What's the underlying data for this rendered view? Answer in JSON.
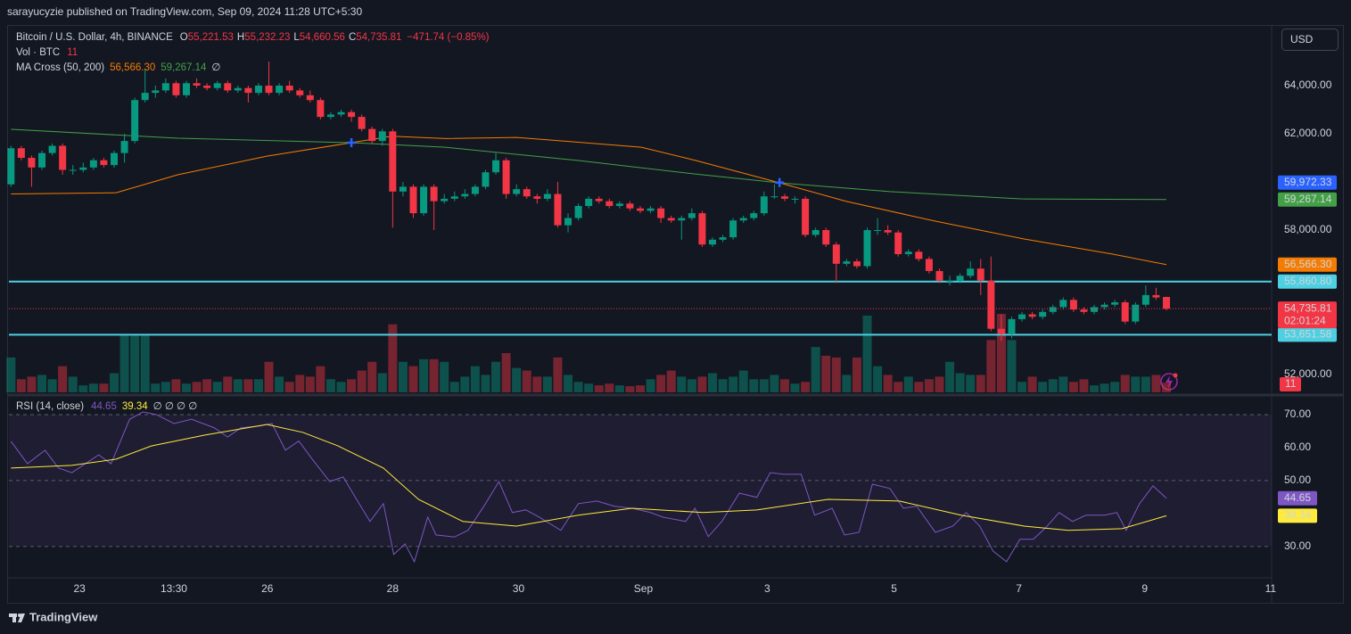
{
  "chart_data": {
    "type": "candlestick",
    "header": "sarayucyzie published on TradingView.com, Sep 09, 2024 11:28 UTC+5:30",
    "title": "Bitcoin / U.S. Dollar, 4h, BINANCE",
    "legend": [
      {
        "key": "O",
        "value": "55,221.53"
      },
      {
        "key": "H",
        "value": "55,232.23"
      },
      {
        "key": "L",
        "value": "54,660.56"
      },
      {
        "key": "C",
        "value": "54,735.81"
      }
    ],
    "change": "−471.74 (−0.85%)",
    "countdown": "02:01:24",
    "currency": "USD",
    "footer": "TradingView",
    "up_color": "#089981",
    "down_color": "#f23645",
    "xlim": [
      -0.2,
      122.2
    ],
    "xticks": [
      {
        "value": 6.64,
        "label": "23"
      },
      {
        "value": 15.79,
        "label": "13:30"
      },
      {
        "value": 24.85,
        "label": "26"
      },
      {
        "value": 37.0,
        "label": "28"
      },
      {
        "value": 49.2,
        "label": "30"
      },
      {
        "value": 61.3,
        "label": "Sep"
      },
      {
        "value": 73.3,
        "label": "3"
      },
      {
        "value": 85.6,
        "label": "5"
      },
      {
        "value": 97.7,
        "label": "7"
      },
      {
        "value": 109.9,
        "label": "9"
      },
      {
        "value": 122.1,
        "label": "11"
      }
    ],
    "ylim": [
      51260,
      66445
    ],
    "yticks": [
      {
        "value": 64000,
        "label": "64,000.00"
      },
      {
        "value": 62000,
        "label": "62,000.00"
      },
      {
        "value": 58000,
        "label": "58,000.00"
      },
      {
        "value": 52000,
        "label": "52,000.00"
      }
    ],
    "ohlc": [
      [
        59900,
        61500,
        59800,
        61400
      ],
      [
        61400,
        61500,
        60900,
        61000
      ],
      [
        61000,
        61100,
        59800,
        60600
      ],
      [
        60600,
        61300,
        60500,
        61200
      ],
      [
        61200,
        61600,
        61100,
        61500
      ],
      [
        61500,
        61600,
        60300,
        60500
      ],
      [
        60500,
        60700,
        60300,
        60500
      ],
      [
        60500,
        60800,
        60400,
        60600
      ],
      [
        60600,
        61000,
        60500,
        60900
      ],
      [
        60900,
        61000,
        60600,
        60700
      ],
      [
        60700,
        61300,
        60600,
        61200
      ],
      [
        61200,
        62000,
        60800,
        61700
      ],
      [
        61700,
        63500,
        61600,
        63400
      ],
      [
        63400,
        64700,
        63300,
        63700
      ],
      [
        63700,
        64000,
        63500,
        63800
      ],
      [
        63800,
        64300,
        63700,
        64100
      ],
      [
        64100,
        64200,
        63500,
        63600
      ],
      [
        63600,
        64200,
        63500,
        64100
      ],
      [
        64100,
        64300,
        63900,
        64000
      ],
      [
        64000,
        64100,
        63800,
        63900
      ],
      [
        63900,
        64200,
        63800,
        64100
      ],
      [
        64100,
        64200,
        63700,
        63800
      ],
      [
        63800,
        64000,
        63700,
        63900
      ],
      [
        63900,
        64000,
        63300,
        63700
      ],
      [
        63700,
        64100,
        63600,
        64000
      ],
      [
        64000,
        65000,
        63600,
        63700
      ],
      [
        63700,
        64100,
        63600,
        64000
      ],
      [
        64000,
        64200,
        63700,
        63800
      ],
      [
        63800,
        63900,
        63500,
        63600
      ],
      [
        63600,
        63800,
        63300,
        63400
      ],
      [
        63400,
        63500,
        62600,
        62700
      ],
      [
        62700,
        62900,
        62600,
        62800
      ],
      [
        62800,
        63000,
        62700,
        62900
      ],
      [
        62900,
        63000,
        62500,
        62700
      ],
      [
        62700,
        62800,
        62100,
        62200
      ],
      [
        62200,
        62300,
        61600,
        61700
      ],
      [
        61700,
        62200,
        61500,
        62100
      ],
      [
        62100,
        62200,
        58100,
        59600
      ],
      [
        59600,
        60000,
        59400,
        59800
      ],
      [
        59800,
        59900,
        58500,
        58700
      ],
      [
        58700,
        59900,
        58600,
        59800
      ],
      [
        59800,
        59900,
        58000,
        59200
      ],
      [
        59200,
        59500,
        59100,
        59300
      ],
      [
        59300,
        59600,
        59200,
        59400
      ],
      [
        59400,
        59700,
        59300,
        59500
      ],
      [
        59500,
        59900,
        59400,
        59800
      ],
      [
        59800,
        60500,
        59700,
        60400
      ],
      [
        60400,
        61200,
        60300,
        60900
      ],
      [
        60900,
        61000,
        59300,
        59500
      ],
      [
        59500,
        59900,
        59400,
        59700
      ],
      [
        59700,
        59800,
        59300,
        59400
      ],
      [
        59400,
        59500,
        59100,
        59300
      ],
      [
        59300,
        59700,
        59200,
        59500
      ],
      [
        59500,
        60000,
        58100,
        58200
      ],
      [
        58200,
        58700,
        57900,
        58500
      ],
      [
        58500,
        59100,
        58400,
        59000
      ],
      [
        59000,
        59400,
        58900,
        59300
      ],
      [
        59300,
        59400,
        59100,
        59200
      ],
      [
        59200,
        59300,
        58900,
        59000
      ],
      [
        59000,
        59200,
        58900,
        59100
      ],
      [
        59100,
        59200,
        58800,
        58900
      ],
      [
        58900,
        59000,
        58700,
        58800
      ],
      [
        58800,
        59000,
        58700,
        58900
      ],
      [
        58900,
        59000,
        58300,
        58500
      ],
      [
        58500,
        58600,
        58300,
        58400
      ],
      [
        58400,
        58600,
        57600,
        58500
      ],
      [
        58500,
        58900,
        58400,
        58700
      ],
      [
        58700,
        58800,
        57300,
        57400
      ],
      [
        57400,
        57700,
        57300,
        57600
      ],
      [
        57600,
        57800,
        57500,
        57700
      ],
      [
        57700,
        58500,
        57600,
        58400
      ],
      [
        58400,
        58600,
        58300,
        58500
      ],
      [
        58500,
        58800,
        58400,
        58700
      ],
      [
        58700,
        59600,
        58600,
        59400
      ],
      [
        59400,
        59900,
        59300,
        59400
      ],
      [
        59400,
        59500,
        59200,
        59300
      ],
      [
        59300,
        59400,
        59100,
        59300
      ],
      [
        59300,
        59400,
        57700,
        57800
      ],
      [
        57800,
        58100,
        57700,
        58000
      ],
      [
        58000,
        58100,
        57300,
        57400
      ],
      [
        57400,
        57500,
        55800,
        56600
      ],
      [
        56600,
        56800,
        56500,
        56700
      ],
      [
        56700,
        56800,
        56400,
        56500
      ],
      [
        56500,
        58100,
        56400,
        58000
      ],
      [
        58000,
        58500,
        57800,
        58000
      ],
      [
        58000,
        58200,
        57800,
        57900
      ],
      [
        57900,
        58000,
        56900,
        57000
      ],
      [
        57000,
        57200,
        56900,
        57100
      ],
      [
        57100,
        57200,
        56700,
        56800
      ],
      [
        56800,
        56900,
        56200,
        56300
      ],
      [
        56300,
        56400,
        55800,
        55900
      ],
      [
        55900,
        56100,
        55700,
        55900
      ],
      [
        55900,
        56200,
        55800,
        56100
      ],
      [
        56100,
        56700,
        56000,
        56400
      ],
      [
        56400,
        56800,
        55300,
        55900
      ],
      [
        55900,
        56900,
        53800,
        53900
      ],
      [
        53900,
        54500,
        53400,
        53700
      ],
      [
        53700,
        54400,
        53500,
        54300
      ],
      [
        54300,
        54600,
        54200,
        54500
      ],
      [
        54500,
        54600,
        54300,
        54400
      ],
      [
        54400,
        54700,
        54300,
        54600
      ],
      [
        54600,
        54900,
        54500,
        54800
      ],
      [
        54800,
        55200,
        54700,
        55100
      ],
      [
        55100,
        55200,
        54600,
        54700
      ],
      [
        54700,
        54800,
        54500,
        54600
      ],
      [
        54600,
        54900,
        54500,
        54800
      ],
      [
        54800,
        55000,
        54700,
        54900
      ],
      [
        54900,
        55100,
        54800,
        55000
      ],
      [
        55000,
        55100,
        54100,
        54200
      ],
      [
        54200,
        55000,
        54100,
        54900
      ],
      [
        54900,
        55700,
        54800,
        55300
      ],
      [
        55300,
        55600,
        55100,
        55200
      ],
      [
        55221.53,
        55232.23,
        54660.56,
        54735.81
      ]
    ],
    "volume": {
      "name": "Vol · BTC",
      "values": [
        40,
        15,
        18,
        20,
        15,
        30,
        18,
        8,
        10,
        10,
        22,
        65,
        65,
        65,
        10,
        12,
        15,
        10,
        12,
        15,
        12,
        18,
        15,
        15,
        15,
        35,
        18,
        12,
        20,
        18,
        30,
        15,
        12,
        15,
        25,
        35,
        22,
        78,
        35,
        30,
        38,
        38,
        35,
        12,
        18,
        30,
        20,
        35,
        45,
        28,
        25,
        18,
        18,
        40,
        20,
        12,
        10,
        8,
        10,
        8,
        7,
        8,
        15,
        20,
        25,
        18,
        15,
        18,
        22,
        15,
        18,
        25,
        15,
        15,
        20,
        15,
        10,
        12,
        52,
        42,
        40,
        20,
        40,
        88,
        30,
        20,
        12,
        18,
        12,
        15,
        18,
        35,
        22,
        20,
        20,
        60,
        90,
        60,
        12,
        18,
        12,
        15,
        18,
        12,
        15,
        8,
        10,
        12,
        20,
        18,
        18,
        20,
        11
      ]
    },
    "ma": {
      "name": "MA Cross (50, 200)",
      "extra": "∅",
      "series": [
        {
          "color": "#f57c00",
          "x": [
            0,
            10.2,
            16.2,
            24.8,
            33,
            36.9,
            42.1,
            49,
            55,
            61.1,
            66.3,
            74.5,
            80.9,
            89.6,
            98.2,
            106.8,
            112
          ],
          "values": [
            59500,
            59550,
            60300,
            61070,
            61630,
            61900,
            61800,
            61850,
            61650,
            61440,
            60900,
            59963,
            59200,
            58370,
            57630,
            57000,
            56566.3
          ],
          "last_label": "56,566.30"
        },
        {
          "color": "#43a047",
          "x": [
            0,
            16.2,
            33,
            42.1,
            55,
            66.3,
            74.5,
            85.2,
            98.2,
            112
          ],
          "values": [
            62185,
            61815,
            61630,
            61440,
            60890,
            60330,
            59963,
            59600,
            59290,
            59267.14
          ],
          "last_label": "59,267.14"
        }
      ]
    },
    "cross_markers": [
      {
        "x": 33,
        "price": 61630
      },
      {
        "x": 74.5,
        "price": 59972.33,
        "label": "59,972.33"
      }
    ],
    "cross_color": "#2962ff",
    "levels": {
      "color": "#4dd0e1",
      "items": [
        {
          "value": 55860.8,
          "label": "55,860.80"
        },
        {
          "value": 53651.58,
          "label": "53,651.58"
        }
      ]
    },
    "rsi": {
      "name": "RSI (14, close)",
      "extra": "∅ ∅ ∅ ∅",
      "color": "#7e57c2",
      "ma_color": "#ffeb3b",
      "ylim": [
        20.5,
        75.4
      ],
      "yticks": [
        {
          "value": 70,
          "label": "70.00"
        },
        {
          "value": 60,
          "label": "60.00"
        },
        {
          "value": 50,
          "label": "50.00"
        },
        {
          "value": 30,
          "label": "30.00"
        }
      ],
      "levels": [
        70,
        50,
        30
      ],
      "x": [
        0,
        1.6,
        3.3,
        4.6,
        5.9,
        8.5,
        9.7,
        11.5,
        12.8,
        14.1,
        15.8,
        17.5,
        19.7,
        21,
        22.3,
        24,
        25.3,
        26.6,
        27.9,
        29.2,
        30.9,
        32.2,
        33.5,
        34.8,
        36.1,
        37.1,
        38.2,
        39.1,
        40.4,
        41.2,
        43,
        44.3,
        46,
        47.3,
        48.6,
        49.9,
        51.2,
        53.3,
        55,
        56.8,
        58.5,
        60.2,
        62,
        63.2,
        65.4,
        66.3,
        67.6,
        68.9,
        70.6,
        72.3,
        73.6,
        74.9,
        76.6,
        77.9,
        79.6,
        80.8,
        82.2,
        83.5,
        85.2,
        86.5,
        87.8,
        89.6,
        91.3,
        92.6,
        93.9,
        95.2,
        96.5,
        97.8,
        99.1,
        100.3,
        101.6,
        102.9,
        104.2,
        106,
        107.2,
        108.1,
        109.4,
        110.7,
        112
      ],
      "values": [
        61.9,
        55.1,
        59.2,
        53.8,
        52.4,
        57.8,
        55.1,
        68.6,
        70.8,
        70,
        67.3,
        68.6,
        66,
        63.2,
        66,
        66.5,
        67.3,
        59.2,
        62,
        56.5,
        49.7,
        51.1,
        44.3,
        37.6,
        43,
        27.6,
        30.8,
        25.4,
        38.9,
        33.5,
        32.9,
        34.9,
        43,
        49.7,
        40.3,
        41.1,
        38.9,
        34.9,
        43,
        43.8,
        42.2,
        41.6,
        40.3,
        38.9,
        37.6,
        41.6,
        33,
        37.6,
        46.2,
        44.9,
        52.4,
        51.9,
        51.9,
        39.5,
        41.6,
        33.5,
        34.3,
        48.9,
        47.6,
        41.6,
        42.2,
        34.3,
        36.2,
        40.3,
        36.2,
        28.6,
        25.4,
        32.2,
        32.2,
        35.7,
        40.3,
        37.6,
        39.5,
        39.5,
        40.3,
        34.9,
        43,
        48.4,
        44.65
      ],
      "ma_x": [
        0,
        5.9,
        10.2,
        13.6,
        18.8,
        24.8,
        28.3,
        31.7,
        36.1,
        39.5,
        43.8,
        49,
        55,
        60.2,
        67.1,
        72.3,
        79.2,
        86.1,
        92.1,
        98.2,
        102.5,
        107.7,
        112
      ],
      "ma_values": [
        53.8,
        54.6,
        56.5,
        60.5,
        63.8,
        67,
        64.6,
        60.5,
        53.8,
        44.3,
        37.6,
        36.2,
        39.5,
        41.6,
        40.3,
        41.1,
        44.3,
        43.8,
        39.5,
        36.2,
        34.9,
        35.4,
        39.34
      ]
    }
  }
}
